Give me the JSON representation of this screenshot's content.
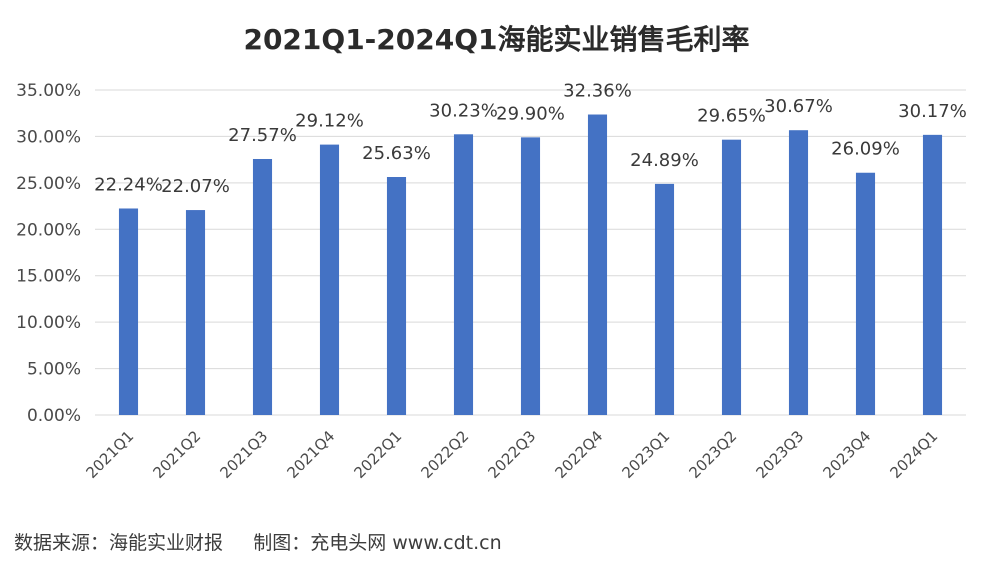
{
  "chart_data": {
    "type": "bar",
    "title": "2021Q1-2024Q1海能实业销售毛利率",
    "categories": [
      "2021Q1",
      "2021Q2",
      "2021Q3",
      "2021Q4",
      "2022Q1",
      "2022Q2",
      "2022Q3",
      "2022Q4",
      "2023Q1",
      "2023Q2",
      "2023Q3",
      "2023Q4",
      "2024Q1"
    ],
    "values": [
      22.24,
      22.07,
      27.57,
      29.12,
      25.63,
      30.23,
      29.9,
      32.36,
      24.89,
      29.65,
      30.67,
      26.09,
      30.17
    ],
    "value_labels": [
      "22.24%",
      "22.07%",
      "27.57%",
      "29.12%",
      "25.63%",
      "30.23%",
      "29.90%",
      "32.36%",
      "24.89%",
      "29.65%",
      "30.67%",
      "26.09%",
      "30.17%"
    ],
    "yticks": [
      "0.00%",
      "5.00%",
      "10.00%",
      "15.00%",
      "20.00%",
      "25.00%",
      "30.00%",
      "35.00%"
    ],
    "ylim": [
      0,
      35
    ],
    "xlabel": "",
    "ylabel": "",
    "grid": true,
    "bar_color": "#4472C4",
    "grid_color": "#d9d9d9"
  },
  "footer": {
    "source": "数据来源：海能实业财报     制图：充电头网 www.cdt.cn"
  }
}
